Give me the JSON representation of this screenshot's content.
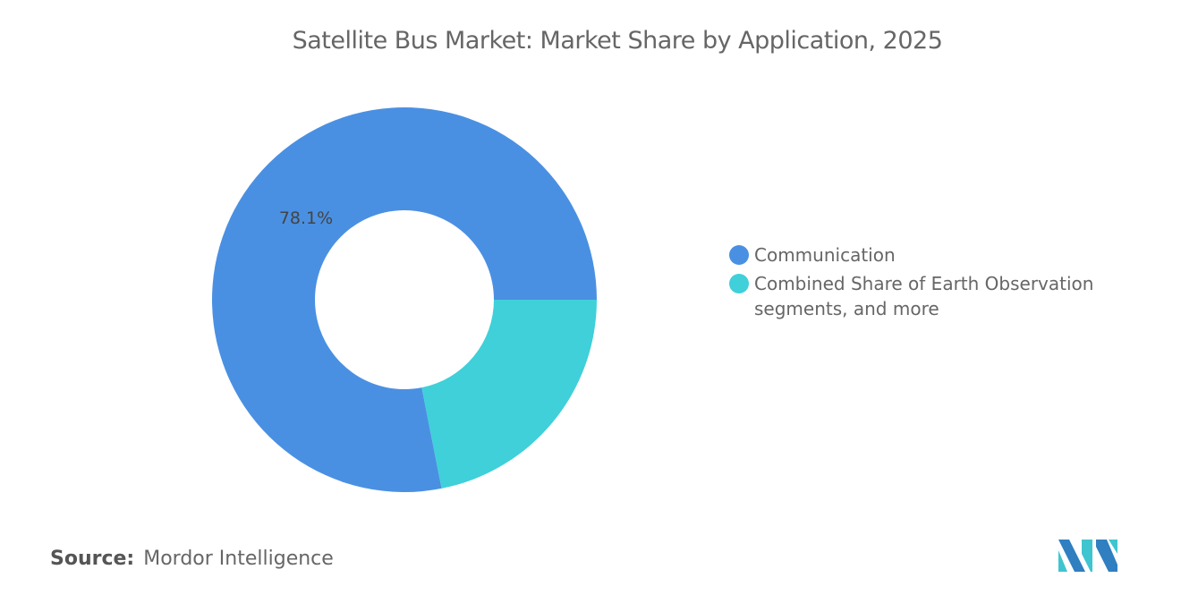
{
  "chart_data": {
    "type": "pie",
    "variant": "donut",
    "title": "Satellite Bus Market: Market Share by Application, 2025",
    "categories": [
      "Communication",
      "Combined Share of Earth Observation segments, and more"
    ],
    "values": [
      78.1,
      21.9
    ],
    "data_labels": [
      "78.1%",
      ""
    ],
    "colors": [
      "#4a90e2",
      "#3fd0d9"
    ],
    "legend_position": "right"
  },
  "source": {
    "label": "Source:",
    "text": "Mordor Intelligence"
  },
  "logo": {
    "text": "Mordor Intelligence"
  }
}
